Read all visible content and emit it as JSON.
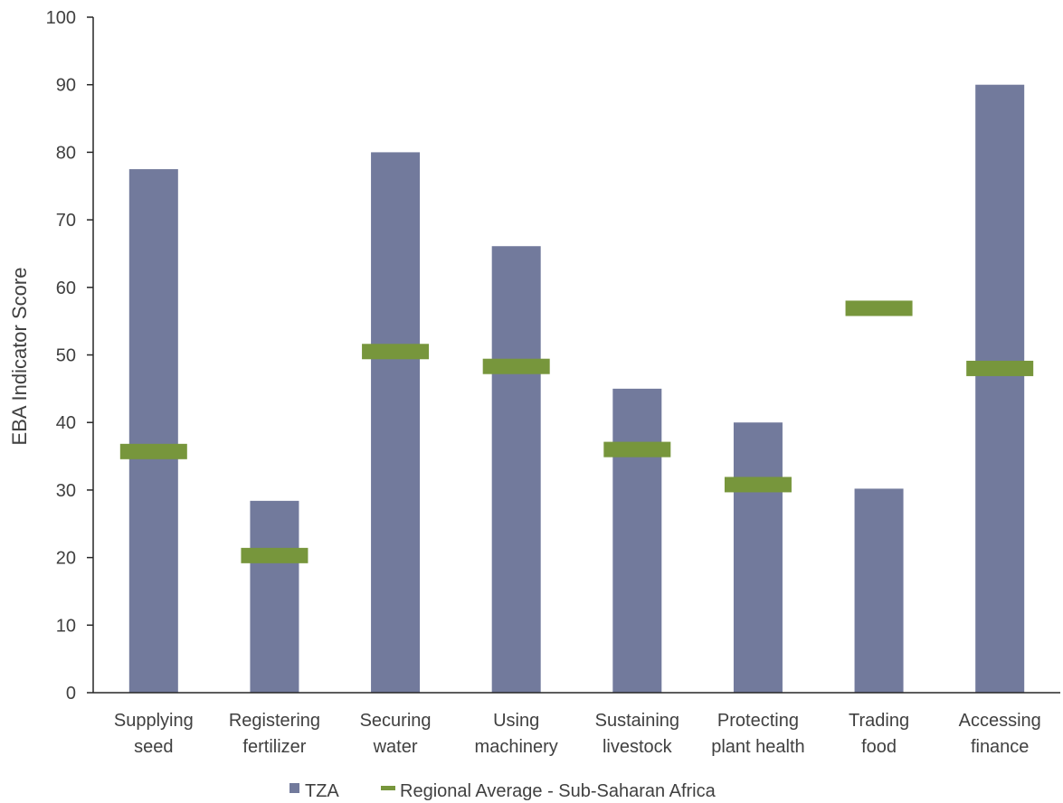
{
  "chart_data": {
    "type": "bar",
    "title": "",
    "ylabel": "EBA Indicator Score",
    "xlabel": "",
    "ylim": [
      0,
      100
    ],
    "yticks": [
      0,
      10,
      20,
      30,
      40,
      50,
      60,
      70,
      80,
      90,
      100
    ],
    "grid": false,
    "legend_position": "bottom",
    "categories": [
      [
        "Supplying",
        "seed"
      ],
      [
        "Registering",
        "fertilizer"
      ],
      [
        "Securing",
        "water"
      ],
      [
        "Using",
        "machinery"
      ],
      [
        "Sustaining",
        "livestock"
      ],
      [
        "Protecting",
        "plant health"
      ],
      [
        "Trading",
        "food"
      ],
      [
        "Accessing",
        "finance"
      ]
    ],
    "series": [
      {
        "name": "TZA",
        "kind": "bar",
        "color": "#727a9c",
        "values": [
          77.5,
          28.4,
          80.0,
          66.1,
          45.0,
          40.0,
          30.2,
          90.0
        ]
      },
      {
        "name": "Regional Average - Sub-Saharan Africa",
        "kind": "marker",
        "color": "#77963c",
        "values": [
          35.7,
          20.3,
          50.5,
          48.3,
          36.0,
          30.8,
          56.9,
          48.0
        ]
      }
    ]
  }
}
